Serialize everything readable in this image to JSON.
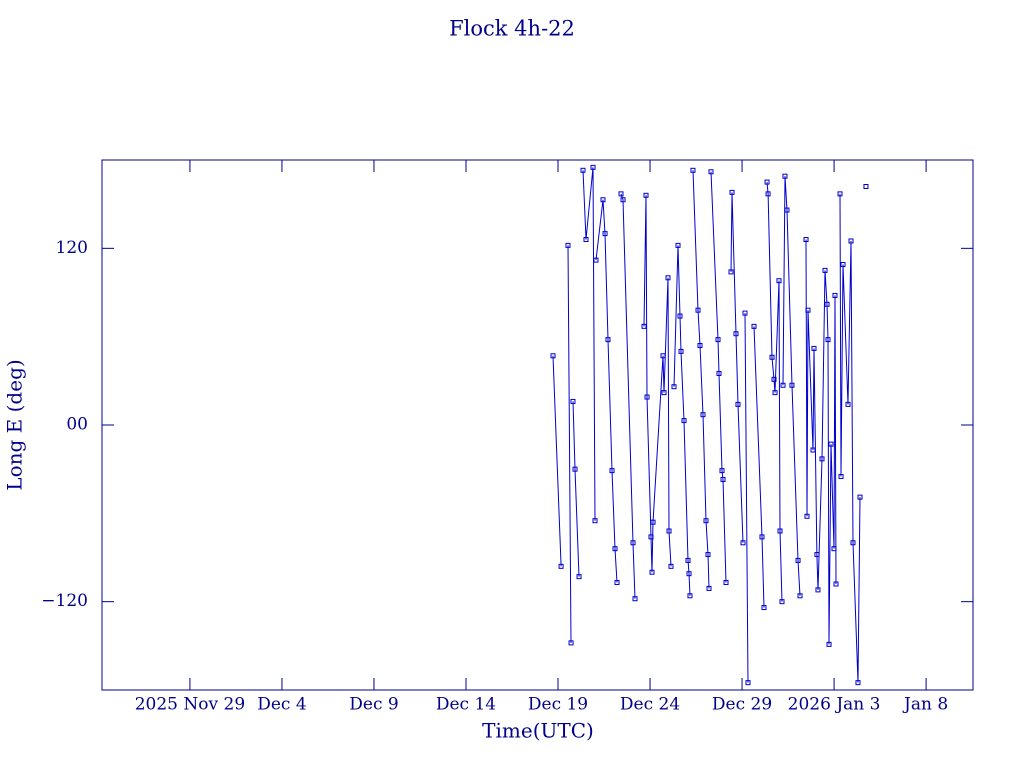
{
  "chart_data": {
    "type": "line",
    "title": "Flock 4h-22",
    "xlabel": "Time(UTC)",
    "ylabel": "Long E (deg)",
    "xlim": [
      "2025-11-24T05:20",
      "2026-01-10T13:10"
    ],
    "xticks": [
      {
        "value": "2025-11-29T00:00",
        "label": "2025 Nov 29"
      },
      {
        "value": "2025-12-04T00:00",
        "label": "Dec 4"
      },
      {
        "value": "2025-12-09T00:00",
        "label": "Dec 9"
      },
      {
        "value": "2025-12-14T00:00",
        "label": "Dec 14"
      },
      {
        "value": "2025-12-19T00:00",
        "label": "Dec 19"
      },
      {
        "value": "2025-12-24T00:00",
        "label": "Dec 24"
      },
      {
        "value": "2025-12-29T00:00",
        "label": "Dec 29"
      },
      {
        "value": "2026-01-03T00:00",
        "label": "2026 Jan 3"
      },
      {
        "value": "2026-01-08T00:00",
        "label": "Jan 8"
      }
    ],
    "ylim": [
      -180,
      180
    ],
    "yticks": [
      120,
      {
        "value": 0,
        "label": "00"
      },
      {
        "value": -120,
        "label": "−120"
      }
    ],
    "x": [
      "2025-12-18T17:30",
      "2025-12-19T04:00",
      null,
      "2025-12-19T13:00",
      "2025-12-19T17:00",
      null,
      "2025-12-19T19:30",
      "2025-12-19T22:10",
      "2025-12-20T03:25",
      null,
      "2025-12-20T08:35",
      "2025-12-20T12:30",
      "2025-12-20T21:40",
      "2025-12-21T00:15",
      null,
      "2025-12-21T01:30",
      "2025-12-21T10:40",
      "2025-12-21T13:20",
      "2025-12-21T17:10",
      "2025-12-21T22:25",
      "2025-12-22T02:20",
      "2025-12-22T04:55",
      null,
      "2025-12-22T10:10",
      "2025-12-22T12:45",
      "2025-12-23T01:50",
      "2025-12-23T04:25",
      null,
      "2025-12-23T16:10",
      "2025-12-23T18:45",
      "2025-12-23T20:05",
      "2025-12-24T01:15",
      "2025-12-24T02:35",
      "2025-12-24T03:55",
      "2025-12-24T16:55",
      "2025-12-24T18:15",
      "2025-12-24T23:25",
      "2025-12-25T00:45",
      "2025-12-25T03:20",
      null,
      "2025-12-25T07:15",
      "2025-12-25T12:30",
      "2025-12-25T15:05",
      "2025-12-25T16:25",
      "2025-12-25T20:20",
      "2025-12-26T01:30",
      "2025-12-26T02:50",
      "2025-12-26T04:05",
      null,
      "2025-12-26T08:00",
      "2025-12-26T14:35",
      "2025-12-26T17:10",
      "2025-12-26T21:05",
      "2025-12-27T01:00",
      "2025-12-27T03:35",
      "2025-12-27T04:55",
      null,
      "2025-12-27T07:30",
      "2025-12-27T16:40",
      "2025-12-27T17:55",
      "2025-12-27T21:50",
      "2025-12-27T23:10",
      "2025-12-28T03:05",
      null,
      "2025-12-28T09:35",
      "2025-12-28T10:55",
      "2025-12-28T16:05",
      "2025-12-28T18:40",
      "2025-12-29T01:15",
      null,
      "2025-12-29T03:50",
      "2025-12-29T07:45",
      null,
      "2025-12-29T15:35",
      "2025-12-30T02:00",
      "2025-12-30T04:35",
      null,
      "2025-12-30T08:35",
      "2025-12-30T09:55",
      "2025-12-30T15:05",
      "2025-12-30T17:40",
      "2025-12-30T19:00",
      "2025-12-31T00:10",
      "2025-12-31T01:30",
      "2025-12-31T04:05",
      null,
      "2025-12-31T05:25",
      "2025-12-31T08:00",
      "2025-12-31T10:35",
      "2025-12-31T17:05",
      "2026-01-01T01:00",
      "2026-01-01T03:35",
      null,
      "2026-01-01T11:25",
      "2026-01-01T12:40",
      "2026-01-01T14:00",
      "2026-01-01T20:30",
      "2026-01-01T21:50",
      "2026-01-02T01:40",
      "2026-01-02T03:00",
      "2026-01-02T08:15",
      "2026-01-02T12:10",
      "2026-01-02T14:50",
      "2026-01-02T16:05",
      "2026-01-02T17:25",
      "2026-01-02T20:00",
      "2026-01-02T23:55",
      "2026-01-03T01:10",
      "2026-01-03T02:30",
      null,
      "2026-01-03T07:45",
      "2026-01-03T09:05",
      "2026-01-03T11:40",
      "2026-01-03T18:10",
      "2026-01-03T22:05",
      "2026-01-04T00:40",
      "2026-01-04T07:10",
      "2026-01-04T09:50",
      null,
      "2026-01-04T17:35"
    ],
    "series": [
      {
        "color": "#0000cc",
        "values": [
          47,
          -96,
          null,
          122,
          -148,
          null,
          16,
          -30,
          -103,
          null,
          173,
          126,
          175,
          -65,
          null,
          112,
          153,
          130,
          58,
          -31,
          -84,
          -107,
          null,
          157,
          153,
          -80,
          -118,
          null,
          67,
          156,
          19,
          -76,
          -100,
          -66,
          47,
          22,
          100,
          -72,
          -96,
          null,
          26,
          122,
          74,
          50,
          3,
          -92,
          -101,
          -116,
          null,
          173,
          78,
          54,
          7,
          -65,
          -88,
          -111,
          null,
          172,
          58,
          35,
          -31,
          -37,
          -107,
          null,
          104,
          158,
          62,
          14,
          -80,
          null,
          76,
          -175,
          null,
          67,
          -76,
          -124,
          null,
          165,
          157,
          46,
          31,
          22,
          98,
          -72,
          -120,
          null,
          27,
          169,
          146,
          27,
          -92,
          -116,
          null,
          126,
          -62,
          78,
          -17,
          52,
          -88,
          -112,
          -23,
          105,
          82,
          58,
          -149,
          -13,
          -84,
          88,
          -108,
          null,
          157,
          -35,
          109,
          14,
          125,
          -80,
          -175,
          -49,
          null,
          162
        ]
      }
    ]
  }
}
